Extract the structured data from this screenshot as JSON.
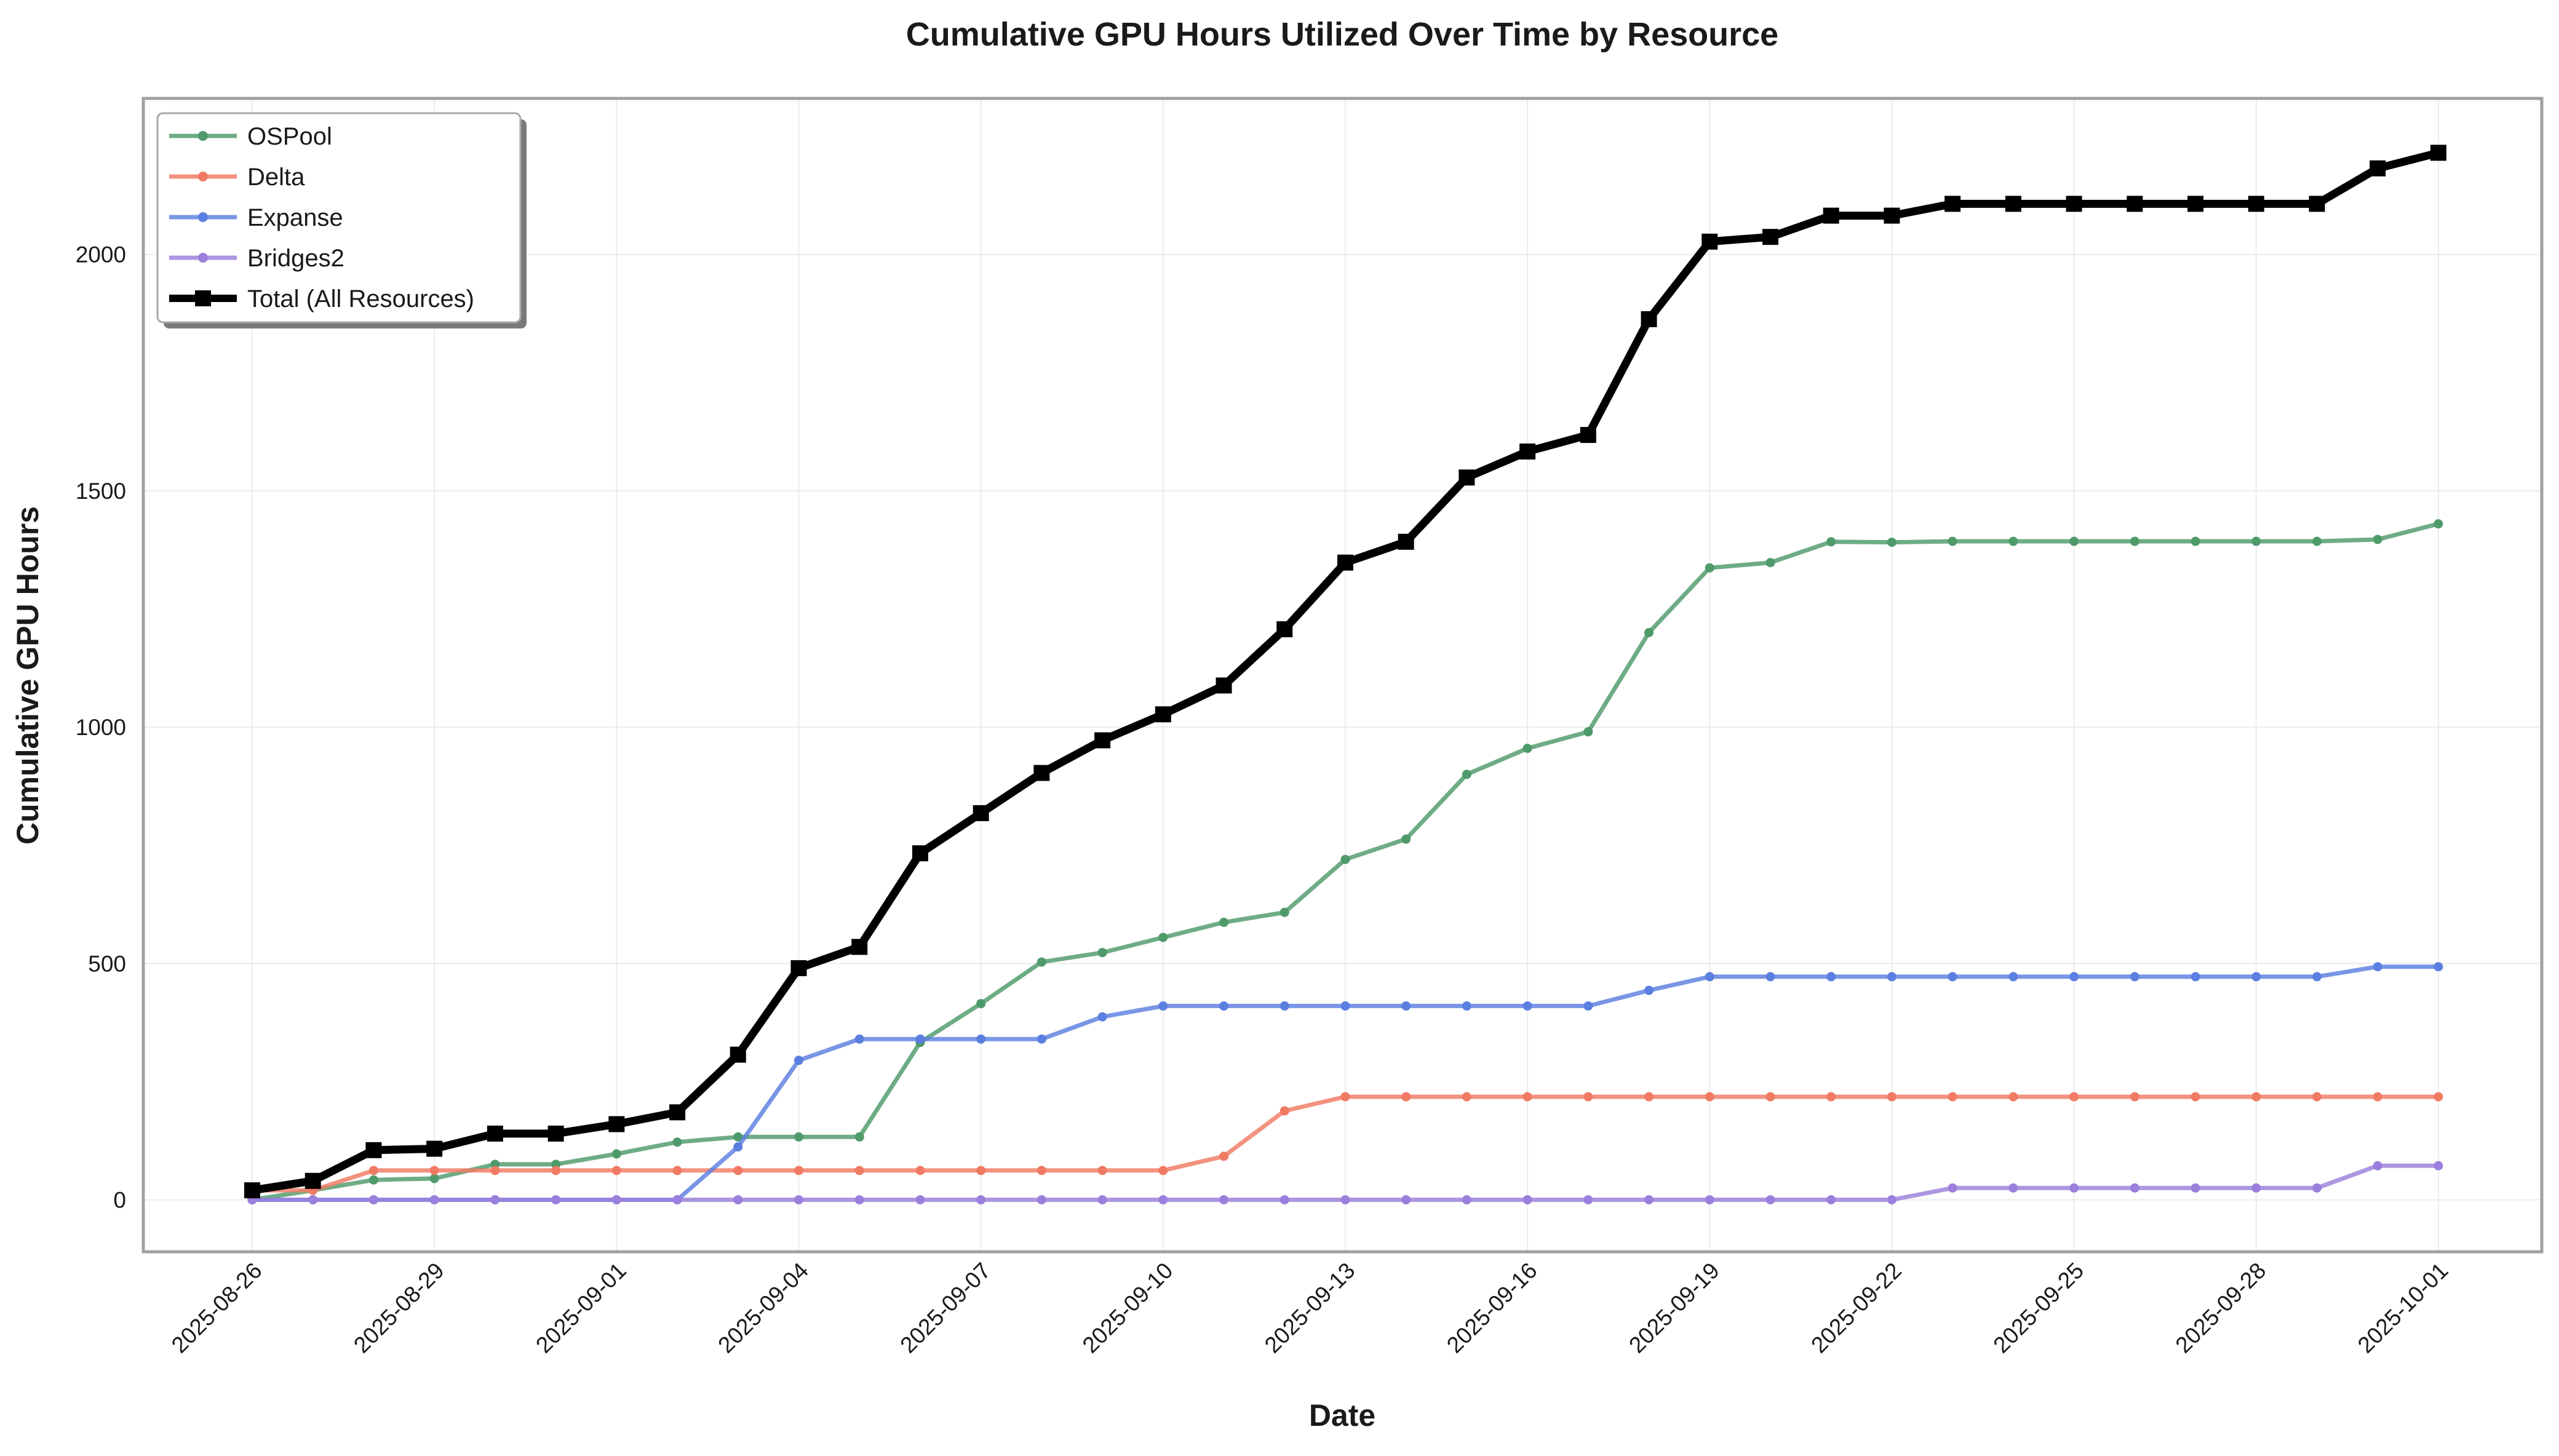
{
  "chart_data": {
    "type": "line",
    "title": "Cumulative GPU Hours Utilized Over Time by Resource",
    "xlabel": "Date",
    "ylabel": "Cumulative GPU Hours",
    "x": [
      "2025-08-26",
      "2025-08-27",
      "2025-08-28",
      "2025-08-29",
      "2025-08-30",
      "2025-08-31",
      "2025-09-01",
      "2025-09-02",
      "2025-09-03",
      "2025-09-04",
      "2025-09-05",
      "2025-09-06",
      "2025-09-07",
      "2025-09-08",
      "2025-09-09",
      "2025-09-10",
      "2025-09-11",
      "2025-09-12",
      "2025-09-13",
      "2025-09-14",
      "2025-09-15",
      "2025-09-16",
      "2025-09-17",
      "2025-09-18",
      "2025-09-19",
      "2025-09-20",
      "2025-09-21",
      "2025-09-22",
      "2025-09-23",
      "2025-09-24",
      "2025-09-25",
      "2025-09-26",
      "2025-09-27",
      "2025-09-28",
      "2025-09-29",
      "2025-09-30",
      "2025-10-01"
    ],
    "x_ticks": [
      "2025-08-26",
      "2025-08-29",
      "2025-09-01",
      "2025-09-04",
      "2025-09-07",
      "2025-09-10",
      "2025-09-13",
      "2025-09-16",
      "2025-09-19",
      "2025-09-22",
      "2025-09-25",
      "2025-09-28",
      "2025-10-01"
    ],
    "y_ticks": [
      0,
      500,
      1000,
      1500,
      2000
    ],
    "ylim": [
      -110,
      2330
    ],
    "grid": true,
    "legend_position": "top-left",
    "series": [
      {
        "name": "OSPool",
        "color": "#4e9a6a",
        "values": [
          0,
          20,
          42,
          45,
          75,
          75,
          97,
          122,
          133,
          133,
          133,
          333,
          415,
          503,
          523,
          555,
          587,
          608,
          720,
          763,
          900,
          955,
          990,
          1200,
          1337,
          1348,
          1392,
          1391,
          1393,
          1393,
          1393,
          1393,
          1393,
          1393,
          1393,
          1397,
          1430
        ]
      },
      {
        "name": "Delta",
        "color": "#f07a63",
        "values": [
          20,
          20,
          62,
          62,
          62,
          62,
          62,
          62,
          62,
          62,
          62,
          62,
          62,
          62,
          62,
          62,
          92,
          188,
          218,
          218,
          218,
          218,
          218,
          218,
          218,
          218,
          218,
          218,
          218,
          218,
          218,
          218,
          218,
          218,
          218,
          218,
          218
        ]
      },
      {
        "name": "Expanse",
        "color": "#5b7fe0",
        "values": [
          0,
          0,
          0,
          0,
          0,
          0,
          0,
          0,
          112,
          295,
          340,
          340,
          340,
          340,
          387,
          410,
          410,
          410,
          410,
          410,
          410,
          410,
          410,
          443,
          472,
          472,
          472,
          472,
          472,
          472,
          472,
          472,
          472,
          472,
          472,
          493,
          493
        ]
      },
      {
        "name": "Bridges2",
        "color": "#9a80dc",
        "values": [
          0,
          0,
          0,
          0,
          0,
          0,
          0,
          0,
          0,
          0,
          0,
          0,
          0,
          0,
          0,
          0,
          0,
          0,
          0,
          0,
          0,
          0,
          0,
          0,
          0,
          0,
          0,
          0,
          25,
          25,
          25,
          25,
          25,
          25,
          25,
          72,
          72
        ]
      },
      {
        "name": "Total (All Resources)",
        "color": "#000000",
        "values": [
          20,
          40,
          105,
          108,
          140,
          140,
          160,
          185,
          307,
          490,
          535,
          733,
          818,
          903,
          972,
          1027,
          1088,
          1207,
          1348,
          1392,
          1528,
          1583,
          1618,
          1863,
          2027,
          2037,
          2082,
          2082,
          2107,
          2107,
          2107,
          2107,
          2107,
          2107,
          2107,
          2182,
          2215
        ]
      }
    ]
  }
}
